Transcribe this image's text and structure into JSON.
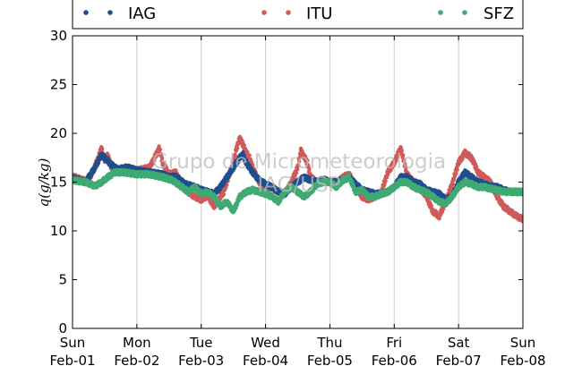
{
  "chart_data": {
    "type": "scatter",
    "ylabel": "q(g/kg)",
    "ylim": [
      0,
      30
    ],
    "yticks": [
      0,
      5,
      10,
      15,
      20,
      25,
      30
    ],
    "xlim": [
      "Feb-01 00:00",
      "Feb-08 00:00"
    ],
    "xtick_labels": [
      {
        "day": "Sun",
        "date": "Feb-01"
      },
      {
        "day": "Mon",
        "date": "Feb-02"
      },
      {
        "day": "Tue",
        "date": "Feb-03"
      },
      {
        "day": "Wed",
        "date": "Feb-04"
      },
      {
        "day": "Thu",
        "date": "Feb-05"
      },
      {
        "day": "Fri",
        "date": "Feb-06"
      },
      {
        "day": "Sat",
        "date": "Feb-07"
      },
      {
        "day": "Sun",
        "date": "Feb-08"
      }
    ],
    "grid": "vertical",
    "legend_position": "top",
    "watermark": [
      "Grupo de Micrometeorologia",
      "IAG/USP"
    ],
    "colors": {
      "IAG": "#1f4e8c",
      "ITU": "#d05a5a",
      "SFZ": "#3faa73"
    },
    "series": [
      {
        "name": "ITU",
        "x_days": [
          0.0,
          0.25,
          0.4,
          0.45,
          0.5,
          0.55,
          0.6,
          0.7,
          0.85,
          1.0,
          1.2,
          1.35,
          1.4,
          1.5,
          1.6,
          1.75,
          1.9,
          2.0,
          2.1,
          2.2,
          2.35,
          2.5,
          2.55,
          2.6,
          2.65,
          2.7,
          2.75,
          2.8,
          2.9,
          3.0,
          3.1,
          3.2,
          3.3,
          3.4,
          3.5,
          3.55,
          3.65,
          3.7,
          3.8,
          3.9,
          4.0,
          4.1,
          4.2,
          4.3,
          4.4,
          4.5,
          4.6,
          4.7,
          4.8,
          4.9,
          5.0,
          5.1,
          5.2,
          5.3,
          5.4,
          5.5,
          5.6,
          5.7,
          5.8,
          5.9,
          6.0,
          6.1,
          6.2,
          6.25,
          6.3,
          6.4,
          6.5,
          6.6,
          6.7,
          6.8,
          6.9,
          7.0
        ],
        "y": [
          15.6,
          15.0,
          17.5,
          18.5,
          17.2,
          17.8,
          16.6,
          16.2,
          16.5,
          16.2,
          16.5,
          18.5,
          17.0,
          15.8,
          16.0,
          14.2,
          13.5,
          13.2,
          13.6,
          12.5,
          14.0,
          17.0,
          18.5,
          19.5,
          18.8,
          18.0,
          17.5,
          16.5,
          15.0,
          14.3,
          14.5,
          14.0,
          13.8,
          15.0,
          16.5,
          18.2,
          17.0,
          15.5,
          15.0,
          15.2,
          15.0,
          14.8,
          15.5,
          15.8,
          14.5,
          13.5,
          13.2,
          13.5,
          14.0,
          16.0,
          17.0,
          18.5,
          15.8,
          15.0,
          14.5,
          13.5,
          12.0,
          11.5,
          13.0,
          14.8,
          17.0,
          18.0,
          17.5,
          16.8,
          16.0,
          15.5,
          15.0,
          13.5,
          12.5,
          12.0,
          11.5,
          11.2
        ]
      },
      {
        "name": "IAG",
        "x_days": [
          0.0,
          0.2,
          0.35,
          0.45,
          0.5,
          0.6,
          0.7,
          0.85,
          1.0,
          1.2,
          1.4,
          1.5,
          1.6,
          1.75,
          1.9,
          2.0,
          2.1,
          2.2,
          2.3,
          2.4,
          2.5,
          2.6,
          2.65,
          2.7,
          2.8,
          2.9,
          3.0,
          3.1,
          3.2,
          3.3,
          3.4,
          3.5,
          3.6,
          3.7,
          3.8,
          3.9,
          4.0,
          4.1,
          4.2,
          4.3,
          4.4,
          4.5,
          4.6,
          4.7,
          4.8,
          4.9,
          5.0,
          5.1,
          5.2,
          5.3,
          5.4,
          5.5,
          5.6,
          5.7,
          5.8,
          5.9,
          6.0,
          6.1,
          6.2,
          6.3,
          6.4,
          6.5,
          6.6,
          6.7,
          6.8,
          6.9,
          7.0
        ],
        "y": [
          15.4,
          15.0,
          16.5,
          17.8,
          17.5,
          16.8,
          16.3,
          16.5,
          16.2,
          16.0,
          15.8,
          15.5,
          15.6,
          14.8,
          14.5,
          14.2,
          14.0,
          13.8,
          14.5,
          15.5,
          16.5,
          17.5,
          17.8,
          17.0,
          16.0,
          15.2,
          14.8,
          14.5,
          14.0,
          13.8,
          14.5,
          15.0,
          15.5,
          15.2,
          15.0,
          15.3,
          15.0,
          15.0,
          15.2,
          15.5,
          14.8,
          14.2,
          14.0,
          13.8,
          13.8,
          14.0,
          14.5,
          15.5,
          15.5,
          15.0,
          14.8,
          14.2,
          14.0,
          13.8,
          13.2,
          13.5,
          15.0,
          16.0,
          15.5,
          15.0,
          14.8,
          14.5,
          14.5,
          14.2,
          14.0,
          14.0,
          14.0
        ]
      },
      {
        "name": "SFZ",
        "x_days": [
          0.0,
          0.2,
          0.35,
          0.45,
          0.55,
          0.65,
          0.8,
          1.0,
          1.2,
          1.4,
          1.55,
          1.7,
          1.8,
          1.9,
          2.0,
          2.1,
          2.2,
          2.3,
          2.4,
          2.5,
          2.6,
          2.7,
          2.8,
          2.9,
          3.0,
          3.1,
          3.2,
          3.3,
          3.4,
          3.5,
          3.6,
          3.7,
          3.8,
          3.9,
          4.0,
          4.1,
          4.2,
          4.3,
          4.4,
          4.5,
          4.6,
          4.7,
          4.8,
          4.9,
          5.0,
          5.1,
          5.2,
          5.3,
          5.4,
          5.5,
          5.6,
          5.7,
          5.8,
          5.9,
          6.0,
          6.1,
          6.2,
          6.3,
          6.4,
          6.5,
          6.6,
          6.7,
          6.8,
          6.9,
          7.0
        ],
        "y": [
          15.2,
          15.0,
          14.6,
          15.0,
          15.5,
          16.0,
          16.0,
          15.8,
          15.8,
          15.5,
          15.2,
          14.5,
          14.0,
          14.5,
          13.8,
          14.0,
          13.5,
          12.5,
          13.0,
          12.0,
          13.5,
          14.0,
          14.2,
          14.0,
          13.8,
          13.5,
          13.0,
          14.0,
          14.5,
          14.0,
          13.5,
          14.0,
          14.8,
          15.0,
          15.0,
          14.5,
          15.2,
          15.5,
          14.0,
          14.2,
          13.5,
          13.5,
          13.8,
          14.0,
          14.5,
          15.0,
          15.0,
          14.5,
          14.2,
          14.0,
          13.5,
          13.0,
          12.8,
          13.5,
          14.5,
          15.0,
          14.8,
          14.5,
          14.5,
          14.3,
          14.2,
          14.0,
          14.0,
          14.0,
          14.0
        ]
      }
    ]
  }
}
